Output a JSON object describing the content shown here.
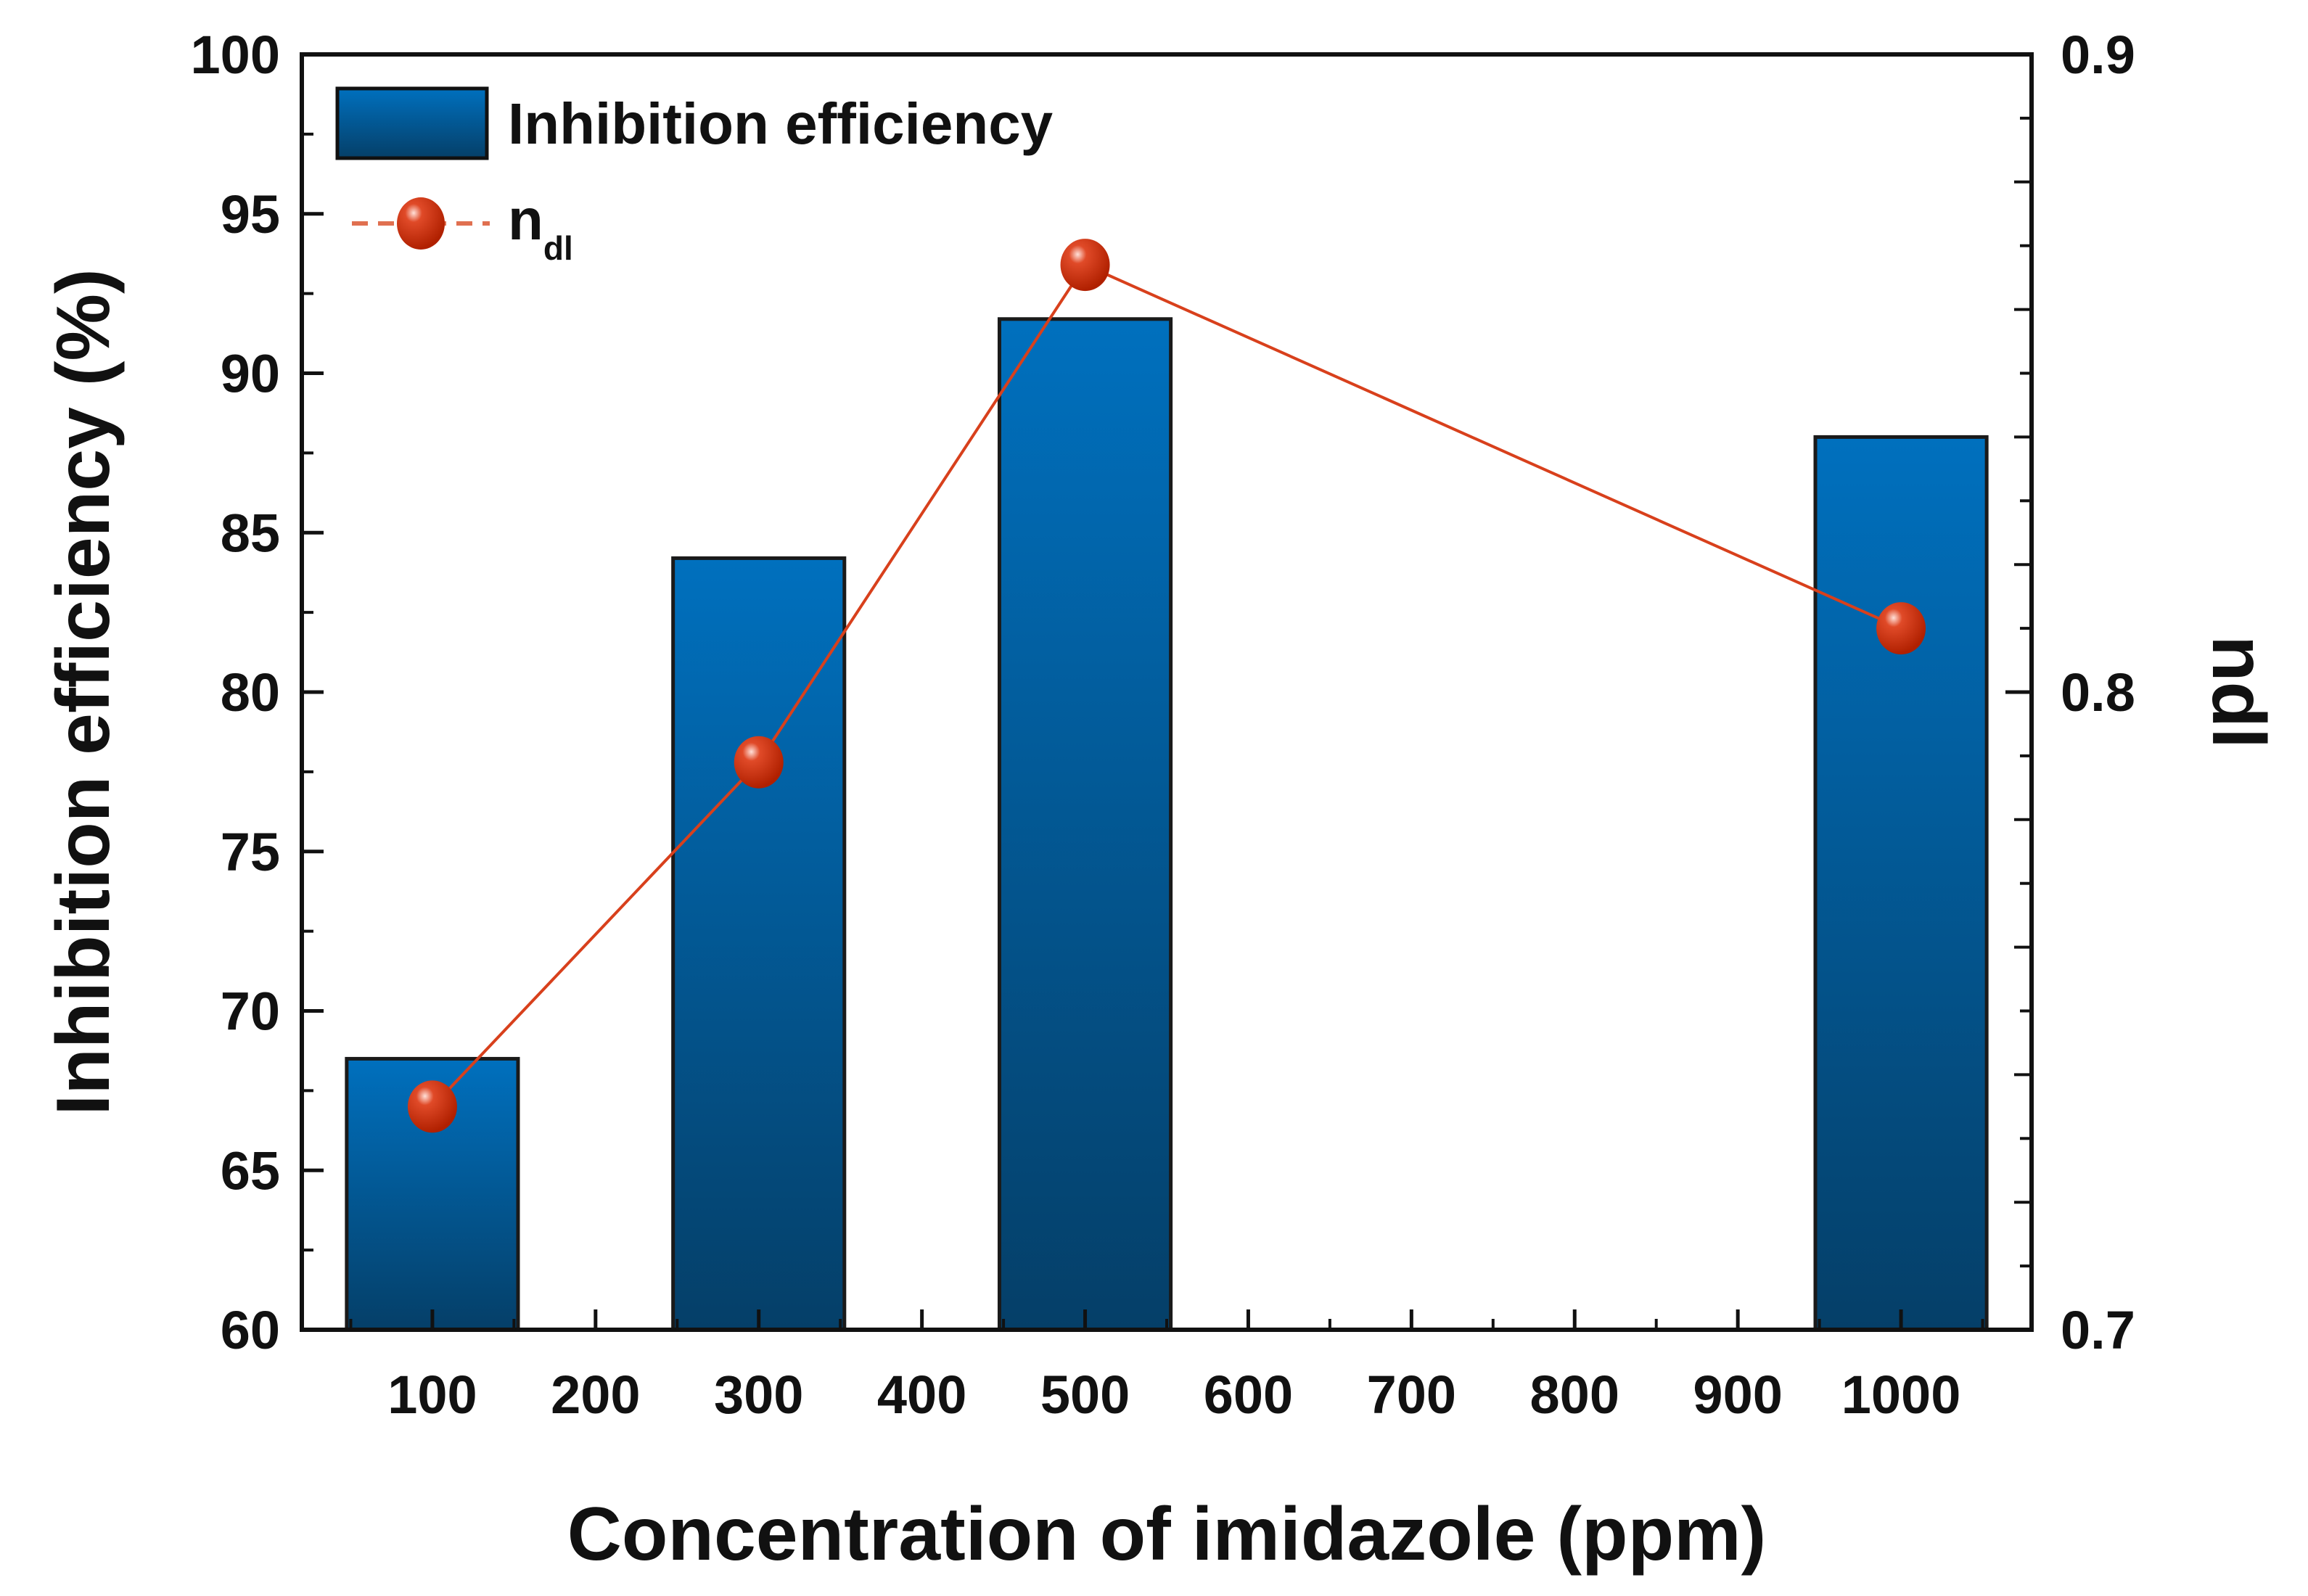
{
  "chart_data": {
    "type": "bar+line",
    "title": "",
    "xlabel": "Concentration of  imidazole (ppm)",
    "ylabel": "Inhibition efficiency (%)",
    "y2label": "ndl",
    "xlim": [
      20,
      1080
    ],
    "ylim": [
      60,
      100
    ],
    "y2lim": [
      0.7,
      0.9
    ],
    "xticks": [
      100,
      200,
      300,
      400,
      500,
      600,
      700,
      800,
      900,
      1000
    ],
    "yticks": [
      60,
      65,
      70,
      75,
      80,
      85,
      90,
      95,
      100
    ],
    "y2ticks": [
      "0.7",
      "0.8",
      "0.9"
    ],
    "grid": false,
    "legend_position": "top-left",
    "series": [
      {
        "name": "Inhibition efficiency",
        "kind": "bar",
        "axis": "left",
        "color": "#0068b0",
        "x": [
          100,
          300,
          500,
          1000
        ],
        "values": [
          68.5,
          84.2,
          91.7,
          88.0
        ]
      },
      {
        "name": "n",
        "subscript": "dl",
        "kind": "line",
        "axis": "right",
        "color": "#d03010",
        "x": [
          100,
          300,
          500,
          1000
        ],
        "values": [
          0.735,
          0.789,
          0.867,
          0.81
        ]
      }
    ]
  }
}
